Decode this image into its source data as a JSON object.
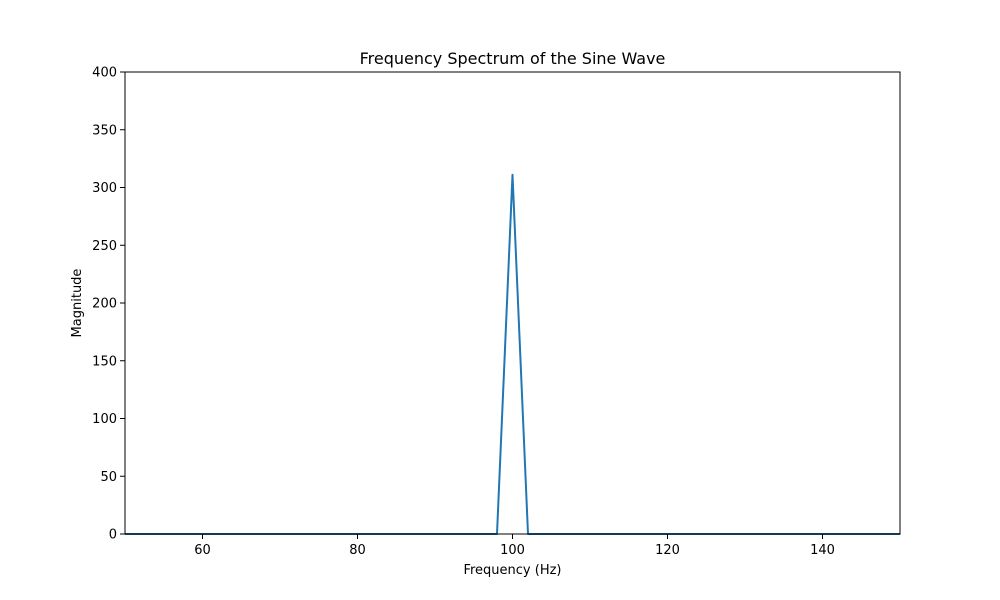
{
  "chart_data": {
    "type": "line",
    "title": "Frequency Spectrum of the Sine Wave",
    "xlabel": "Frequency (Hz)",
    "ylabel": "Magnitude",
    "xlim": [
      50,
      150
    ],
    "ylim": [
      0,
      400
    ],
    "xticks": [
      60,
      80,
      100,
      120,
      140
    ],
    "yticks": [
      0,
      50,
      100,
      150,
      200,
      250,
      300,
      350,
      400
    ],
    "grid": false,
    "series": [
      {
        "color": "#1f77b4",
        "x": [
          50,
          52,
          54,
          56,
          58,
          60,
          62,
          64,
          66,
          68,
          70,
          72,
          74,
          76,
          78,
          80,
          82,
          84,
          86,
          88,
          90,
          92,
          94,
          96,
          98,
          100,
          102,
          104,
          106,
          108,
          110,
          112,
          114,
          116,
          118,
          120,
          122,
          124,
          126,
          128,
          130,
          132,
          134,
          136,
          138,
          140,
          142,
          144,
          146,
          148,
          150
        ],
        "y": [
          0,
          0,
          0,
          0,
          0,
          0,
          0,
          0,
          0,
          0,
          0,
          0,
          0,
          0,
          0,
          0,
          0,
          0,
          0,
          0,
          0,
          0,
          0,
          0,
          0,
          311,
          0,
          0,
          0,
          0,
          0,
          0,
          0,
          0,
          0,
          0,
          0,
          0,
          0,
          0,
          0,
          0,
          0,
          0,
          0,
          0,
          0,
          0,
          0,
          0,
          0
        ]
      }
    ]
  }
}
